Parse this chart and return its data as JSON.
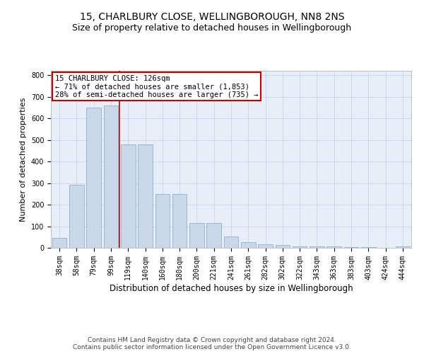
{
  "title": "15, CHARLBURY CLOSE, WELLINGBOROUGH, NN8 2NS",
  "subtitle": "Size of property relative to detached houses in Wellingborough",
  "xlabel": "Distribution of detached houses by size in Wellingborough",
  "ylabel": "Number of detached properties",
  "categories": [
    "38sqm",
    "58sqm",
    "79sqm",
    "99sqm",
    "119sqm",
    "140sqm",
    "160sqm",
    "180sqm",
    "200sqm",
    "221sqm",
    "241sqm",
    "261sqm",
    "282sqm",
    "302sqm",
    "322sqm",
    "343sqm",
    "363sqm",
    "383sqm",
    "403sqm",
    "424sqm",
    "444sqm"
  ],
  "values": [
    47,
    293,
    648,
    660,
    478,
    478,
    248,
    248,
    115,
    115,
    53,
    27,
    15,
    13,
    8,
    6,
    5,
    4,
    4,
    1,
    5
  ],
  "bar_color": "#c8d8e8",
  "bar_edge_color": "#7aaac8",
  "vline_x_index": 3.5,
  "vline_color": "#cc0000",
  "annotation_text": "15 CHARLBURY CLOSE: 126sqm\n← 71% of detached houses are smaller (1,853)\n28% of semi-detached houses are larger (735) →",
  "annotation_box_color": "#ffffff",
  "annotation_box_edge_color": "#cc0000",
  "ylim": [
    0,
    820
  ],
  "yticks": [
    0,
    100,
    200,
    300,
    400,
    500,
    600,
    700,
    800
  ],
  "grid_color": "#c8d4e8",
  "background_color": "#e8eef8",
  "footer_line1": "Contains HM Land Registry data © Crown copyright and database right 2024.",
  "footer_line2": "Contains public sector information licensed under the Open Government Licence v3.0.",
  "title_fontsize": 10,
  "subtitle_fontsize": 9,
  "xlabel_fontsize": 8.5,
  "ylabel_fontsize": 8,
  "tick_fontsize": 7,
  "footer_fontsize": 6.5,
  "annotation_fontsize": 7.5
}
